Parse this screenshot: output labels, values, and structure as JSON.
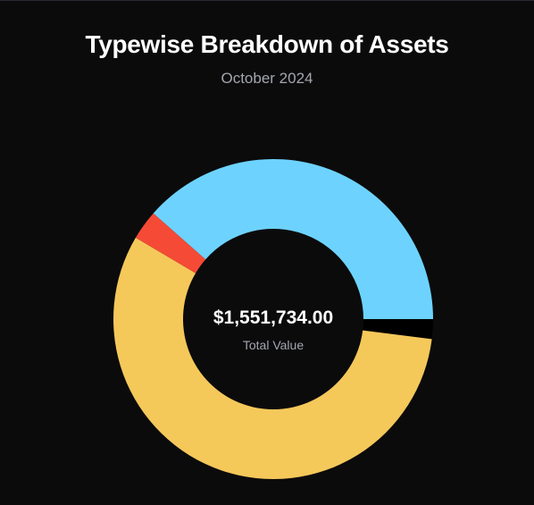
{
  "header": {
    "title": "Typewise Breakdown of Assets",
    "subtitle": "October 2024"
  },
  "center": {
    "value": "$1,551,734.00",
    "label": "Total Value"
  },
  "colors": {
    "background": "#0b0b0c",
    "slice_blue": "#6dd3fe",
    "slice_black": "#000000",
    "slice_yellow": "#f5c85a",
    "slice_red": "#f54a36"
  },
  "chart_data": {
    "type": "pie",
    "variant": "donut",
    "start": "3 o'clock, clockwise",
    "slices": [
      {
        "value": 2.0,
        "color": "#000000"
      },
      {
        "value": 56.5,
        "color": "#f5c85a"
      },
      {
        "value": 3.0,
        "color": "#f54a36"
      },
      {
        "value": 38.5,
        "color": "#6dd3fe"
      }
    ]
  }
}
